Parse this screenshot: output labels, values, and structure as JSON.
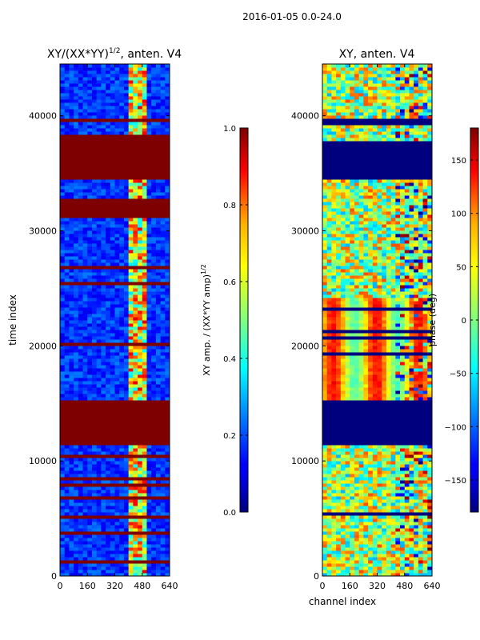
{
  "figure": {
    "suptitle": "2016-01-05 0.0-24.0",
    "xlabel": "channel index"
  },
  "chart_data": [
    {
      "type": "heatmap",
      "title": "XY/(XX*YY)",
      "title_exponent": "1/2",
      "title_suffix": ", anten. V4",
      "xlabel": "",
      "ylabel": "time index",
      "xlim": [
        0,
        640
      ],
      "ylim": [
        0,
        44500
      ],
      "xticks": [
        0,
        160,
        320,
        480,
        640
      ],
      "yticks": [
        0,
        10000,
        20000,
        30000,
        40000
      ],
      "colormap": "jet",
      "colorbar": {
        "label": "XY amp. / (XX*YY amp)",
        "label_exponent": "1/2",
        "range": [
          0.0,
          1.0
        ],
        "ticks": [
          "0.0",
          "0.2",
          "0.4",
          "0.6",
          "0.8",
          "1.0"
        ]
      },
      "description_values": {
        "masked_time_blocks": [
          [
            11500,
            15200
          ],
          [
            31200,
            32900
          ],
          [
            34500,
            38500
          ],
          [
            39600,
            39900
          ]
        ],
        "bright_channel_range": [
          400,
          500
        ]
      }
    },
    {
      "type": "heatmap",
      "title": "XY, anten. V4",
      "xlabel": "channel index",
      "ylabel": "",
      "xlim": [
        0,
        640
      ],
      "ylim": [
        0,
        44500
      ],
      "xticks": [
        0,
        160,
        320,
        480,
        640
      ],
      "yticks": [
        0,
        10000,
        20000,
        30000,
        40000
      ],
      "colormap": "jet",
      "colorbar": {
        "label": "phase (deg)",
        "range": [
          -180,
          180
        ],
        "ticks": [
          "150",
          "100",
          "50",
          "0",
          "−50",
          "−100",
          "−150"
        ],
        "tick_values": [
          150,
          100,
          50,
          0,
          -50,
          -100,
          -150
        ]
      },
      "description_values": {
        "masked_time_blocks": [
          [
            11500,
            15200
          ],
          [
            34500,
            37800
          ],
          [
            39600,
            39900
          ]
        ]
      }
    }
  ]
}
